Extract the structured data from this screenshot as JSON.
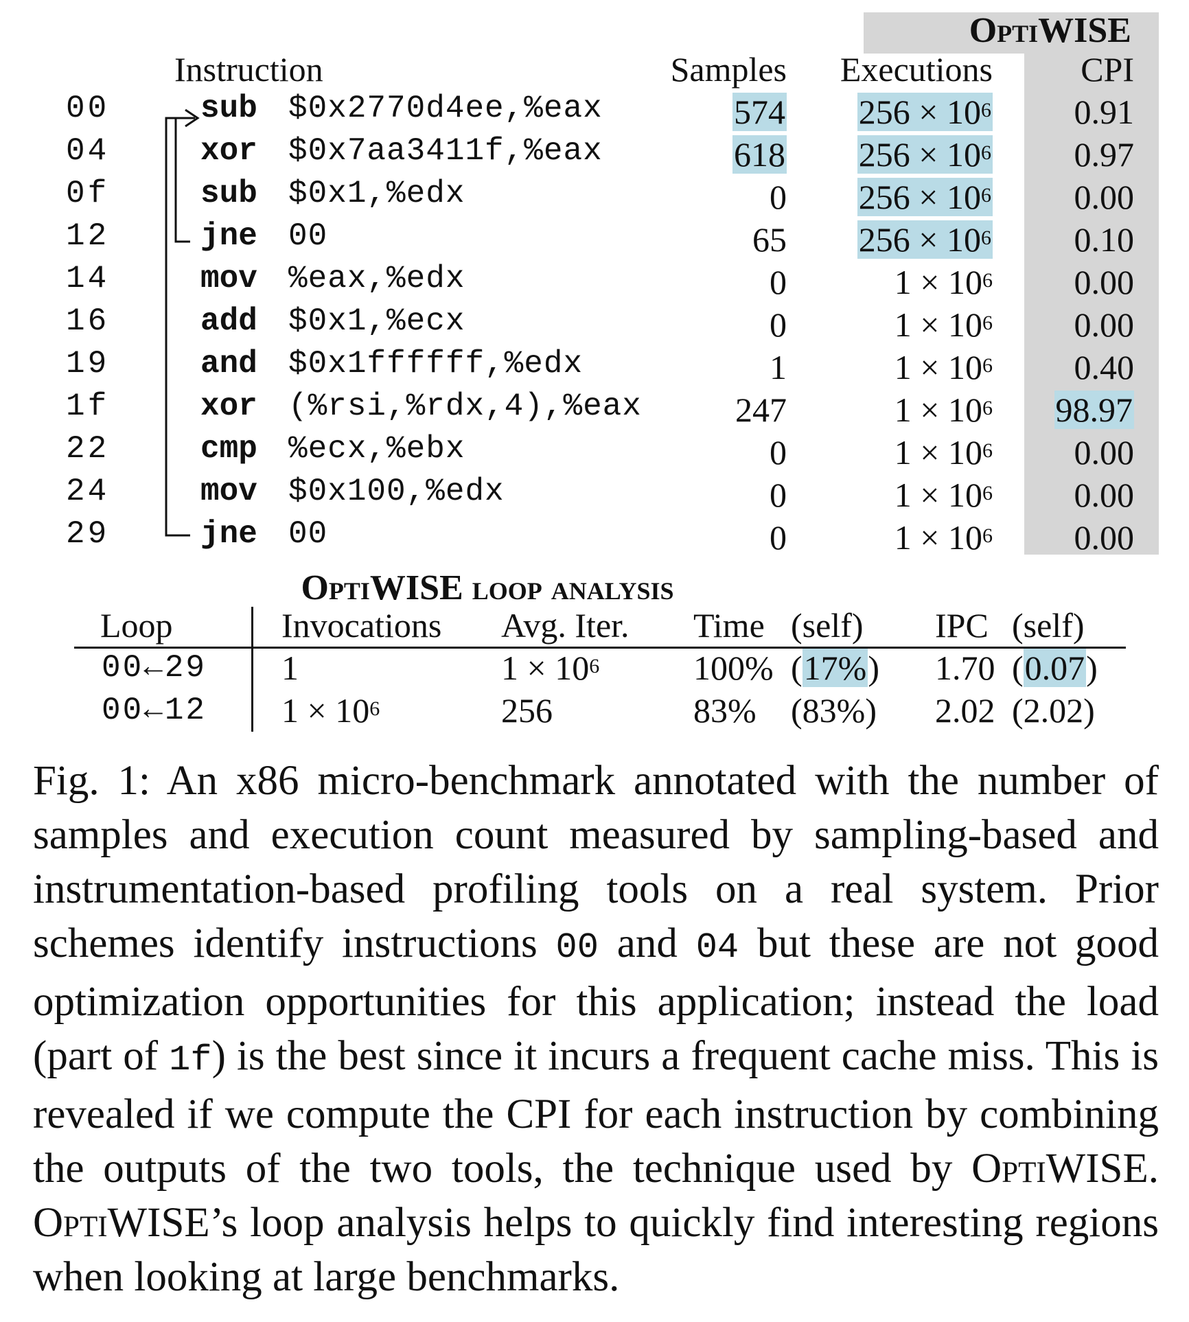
{
  "top_table": {
    "optiwise_header": "OptiWISE",
    "columns": {
      "instruction": "Instruction",
      "samples": "Samples",
      "executions": "Executions",
      "cpi": "CPI"
    },
    "rows": [
      {
        "addr": "00",
        "op": "sub",
        "args": "$0x2770d4ee,%eax",
        "samples": "574",
        "exec_base": "256 × 10",
        "exec_exp": "6",
        "cpi": "0.91"
      },
      {
        "addr": "04",
        "op": "xor",
        "args": "$0x7aa3411f,%eax",
        "samples": "618",
        "exec_base": "256 × 10",
        "exec_exp": "6",
        "cpi": "0.97"
      },
      {
        "addr": "0f",
        "op": "sub",
        "args": "$0x1,%edx",
        "samples": "0",
        "exec_base": "256 × 10",
        "exec_exp": "6",
        "cpi": "0.00"
      },
      {
        "addr": "12",
        "op": "jne",
        "args": "00",
        "samples": "65",
        "exec_base": "256 × 10",
        "exec_exp": "6",
        "cpi": "0.10"
      },
      {
        "addr": "14",
        "op": "mov",
        "args": "%eax,%edx",
        "samples": "0",
        "exec_base": "1 × 10",
        "exec_exp": "6",
        "cpi": "0.00"
      },
      {
        "addr": "16",
        "op": "add",
        "args": "$0x1,%ecx",
        "samples": "0",
        "exec_base": "1 × 10",
        "exec_exp": "6",
        "cpi": "0.00"
      },
      {
        "addr": "19",
        "op": "and",
        "args": "$0x1ffffff,%edx",
        "samples": "1",
        "exec_base": "1 × 10",
        "exec_exp": "6",
        "cpi": "0.40"
      },
      {
        "addr": "1f",
        "op": "xor",
        "args": "(%rsi,%rdx,4),%eax",
        "samples": "247",
        "exec_base": "1 × 10",
        "exec_exp": "6",
        "cpi": "98.97"
      },
      {
        "addr": "22",
        "op": "cmp",
        "args": "%ecx,%ebx",
        "samples": "0",
        "exec_base": "1 × 10",
        "exec_exp": "6",
        "cpi": "0.00"
      },
      {
        "addr": "24",
        "op": "mov",
        "args": "$0x100,%edx",
        "samples": "0",
        "exec_base": "1 × 10",
        "exec_exp": "6",
        "cpi": "0.00"
      },
      {
        "addr": "29",
        "op": "jne",
        "args": "00",
        "samples": "0",
        "exec_base": "1 × 10",
        "exec_exp": "6",
        "cpi": "0.00"
      }
    ]
  },
  "loop_table": {
    "title": "OptiWISE loop analysis",
    "columns": {
      "loop": "Loop",
      "invocations": "Invocations",
      "avg_iter": "Avg. Iter.",
      "time": "Time",
      "time_self": "(self)",
      "ipc": "IPC",
      "ipc_self": "(self)"
    },
    "rows": [
      {
        "loop": "00←29",
        "inv_base": "1",
        "inv_exp": "",
        "avg_base": "1 × 10",
        "avg_exp": "6",
        "time": "100%",
        "time_self": "17%",
        "ipc": "1.70",
        "ipc_self": "0.07"
      },
      {
        "loop": "00←12",
        "inv_base": "1 × 10",
        "inv_exp": "6",
        "avg_base": "256",
        "avg_exp": "",
        "time": "83%",
        "time_self": "83%",
        "ipc": "2.02",
        "ipc_self": "2.02"
      }
    ]
  },
  "caption": {
    "part1": "Fig. 1: An x86 micro-benchmark annotated with the number of samples and execution count measured by sampling-based and instrumentation-based profiling tools on a real system. Prior schemes identify instructions ",
    "code1": "00",
    "part2": " and ",
    "code2": "04",
    "part3": " but these are not good optimization opportunities for this application; instead the load (part of ",
    "code3": "1f",
    "part4": ") is the best since it incurs a frequent cache miss. This is revealed if we compute the CPI for each instruction by combining the outputs of the two tools, the technique used by ",
    "name1": "OptiWISE",
    "part5": ". ",
    "name2": "OptiWISE",
    "part6": "’s loop analysis helps to quickly find interesting regions when looking at large benchmarks."
  },
  "colors": {
    "highlight": "#b9dbe6",
    "optiwise_panel": "#d6d6d6"
  }
}
